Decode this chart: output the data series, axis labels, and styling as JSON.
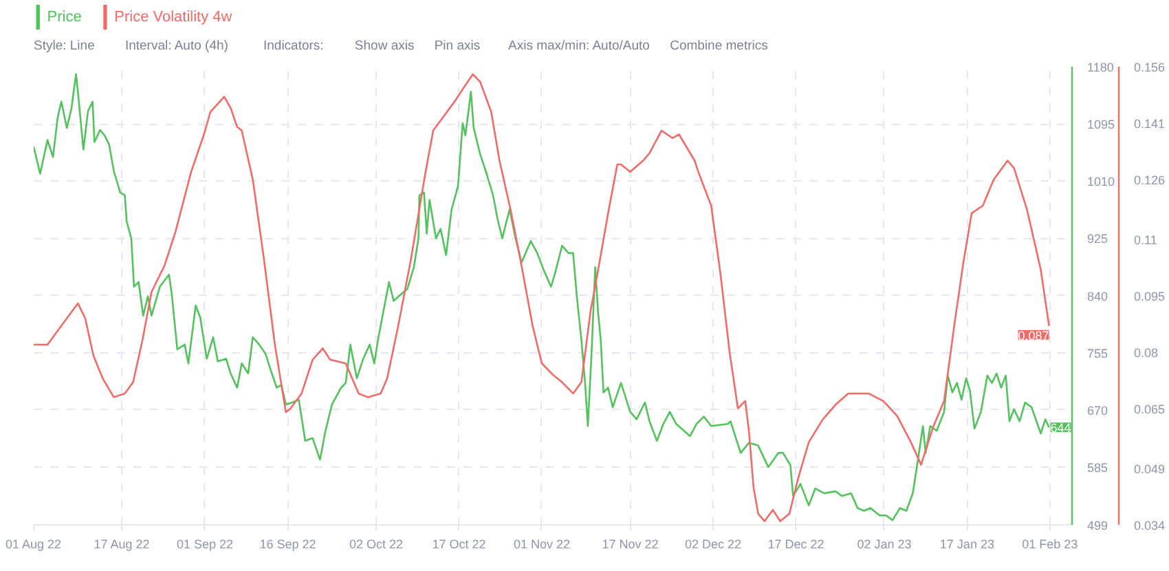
{
  "chart_data": {
    "type": "line",
    "annotations": [
      "Style: Line",
      "Interval: Auto (4h)",
      "Indicators:",
      "Show axis",
      "Pin axis",
      "Axis max/min: Auto/Auto",
      "Combine metrics"
    ],
    "xlim": [
      "2022-08-01",
      "2023-02-05"
    ],
    "xticks": [
      {
        "value": "2022-08-01",
        "label": "01 Aug 22"
      },
      {
        "value": "2022-08-17",
        "label": "17 Aug 22"
      },
      {
        "value": "2022-09-01",
        "label": "01 Sep 22"
      },
      {
        "value": "2022-09-16",
        "label": "16 Sep 22"
      },
      {
        "value": "2022-10-02",
        "label": "02 Oct 22"
      },
      {
        "value": "2022-10-17",
        "label": "17 Oct 22"
      },
      {
        "value": "2022-11-01",
        "label": "01 Nov 22"
      },
      {
        "value": "2022-11-17",
        "label": "17 Nov 22"
      },
      {
        "value": "2022-12-02",
        "label": "02 Dec 22"
      },
      {
        "value": "2022-12-17",
        "label": "17 Dec 22"
      },
      {
        "value": "2023-01-02",
        "label": "02 Jan 23"
      },
      {
        "value": "2023-01-17",
        "label": "17 Jan 23"
      },
      {
        "value": "2023-02-01",
        "label": "01 Feb 23"
      }
    ],
    "ylim": [
      499,
      1180
    ],
    "yticks": [
      499,
      585,
      670,
      755,
      840,
      925,
      1010,
      1095,
      1180
    ],
    "y2lim": [
      0.034,
      0.156
    ],
    "y2ticks": [
      0.034,
      0.049,
      0.065,
      0.08,
      0.095,
      0.11,
      0.126,
      0.141,
      0.156
    ],
    "grid": true,
    "legend": "top left",
    "series": [
      {
        "name": "Price",
        "color": "#52c25c",
        "x": [
          "2022-08-01T00:00",
          "2022-08-02T04:00",
          "2022-08-03T12:00",
          "2022-08-04T12:00",
          "2022-08-05T08:00",
          "2022-08-06T00:00",
          "2022-08-07T00:00",
          "2022-08-07T20:00",
          "2022-08-08T16:00",
          "2022-08-09T00:00",
          "2022-08-10T00:00",
          "2022-08-10T20:00",
          "2022-08-11T16:00",
          "2022-08-12T00:00",
          "2022-08-13T00:00",
          "2022-08-13T20:00",
          "2022-08-14T16:00",
          "2022-08-15T12:00",
          "2022-08-16T16:00",
          "2022-08-17T12:00",
          "2022-08-17T20:00",
          "2022-08-18T16:00",
          "2022-08-19T04:00",
          "2022-08-20T00:00",
          "2022-08-20T20:00",
          "2022-08-21T16:00",
          "2022-08-22T08:00",
          "2022-08-23T20:00",
          "2022-08-25T12:00",
          "2022-08-26T00:00",
          "2022-08-27T00:00",
          "2022-08-28T08:00",
          "2022-08-29T00:00",
          "2022-08-30T08:00",
          "2022-08-31T04:00",
          "2022-09-01T08:00",
          "2022-09-02T12:00",
          "2022-09-03T08:00",
          "2022-09-04T20:00",
          "2022-09-05T16:00",
          "2022-09-06T20:00",
          "2022-09-07T16:00",
          "2022-09-08T20:00",
          "2022-09-09T16:00",
          "2022-09-10T20:00",
          "2022-09-12T00:00",
          "2022-09-12T20:00",
          "2022-09-14T00:00",
          "2022-09-14T20:00",
          "2022-09-15T16:00",
          "2022-09-16T20:00",
          "2022-09-18T00:00",
          "2022-09-19T04:00",
          "2022-09-20T12:00",
          "2022-09-21T20:00",
          "2022-09-22T20:00",
          "2022-09-24T00:00",
          "2022-09-25T16:00",
          "2022-09-26T12:00",
          "2022-09-27T08:00",
          "2022-09-28T12:00",
          "2022-09-29T16:00",
          "2022-09-30T20:00",
          "2022-10-01T16:00",
          "2022-10-02T08:00",
          "2022-10-04T08:00",
          "2022-10-05T04:00",
          "2022-10-07T16:00",
          "2022-10-08T20:00",
          "2022-10-09T16:00",
          "2022-10-09T20:00",
          "2022-10-10T16:00",
          "2022-10-11T04:00",
          "2022-10-11T16:00",
          "2022-10-12T20:00",
          "2022-10-13T16:00",
          "2022-10-14T16:00",
          "2022-10-15T16:00",
          "2022-10-16T20:00",
          "2022-10-17T16:00",
          "2022-10-18T04:00",
          "2022-10-19T04:00",
          "2022-10-19T16:00",
          "2022-10-20T20:00",
          "2022-10-22T00:00",
          "2022-10-23T04:00",
          "2022-10-24T00:00",
          "2022-10-24T20:00",
          "2022-10-26T04:00",
          "2022-10-27T04:00",
          "2022-10-28T08:00",
          "2022-10-30T00:00",
          "2022-10-31T04:00",
          "2022-11-01T08:00",
          "2022-11-02T16:00",
          "2022-11-03T08:00",
          "2022-11-04T16:00",
          "2022-11-05T20:00",
          "2022-11-06T16:00",
          "2022-11-07T08:00",
          "2022-11-08T04:00",
          "2022-11-08T20:00",
          "2022-11-09T08:00",
          "2022-11-10T00:00",
          "2022-11-10T16:00",
          "2022-11-11T04:00",
          "2022-11-11T16:00",
          "2022-11-12T04:00",
          "2022-11-13T00:00",
          "2022-11-13T20:00",
          "2022-11-15T08:00",
          "2022-11-17T00:00",
          "2022-11-18T04:00",
          "2022-11-19T16:00",
          "2022-11-20T12:00",
          "2022-11-21T20:00",
          "2022-11-23T00:00",
          "2022-11-24T04:00",
          "2022-11-25T08:00",
          "2022-11-27T20:00",
          "2022-11-29T00:00",
          "2022-11-30T08:00",
          "2022-12-01T16:00",
          "2022-12-04T16:00",
          "2022-12-05T04:00",
          "2022-12-07T00:00",
          "2022-12-08T12:00",
          "2022-12-10T04:00",
          "2022-12-12T00:00",
          "2022-12-13T20:00",
          "2022-12-14T16:00",
          "2022-12-16T00:00",
          "2022-12-16T12:00",
          "2022-12-17T20:00",
          "2022-12-19T08:00",
          "2022-12-20T12:00",
          "2022-12-22T04:00",
          "2022-12-24T04:00",
          "2022-12-25T08:00",
          "2022-12-27T00:00",
          "2022-12-28T04:00",
          "2022-12-29T08:00",
          "2022-12-30T12:00",
          "2023-01-01T04:00",
          "2023-01-02T08:00",
          "2023-01-03T12:00",
          "2023-01-04T20:00",
          "2023-01-06T00:00",
          "2023-01-07T04:00",
          "2023-01-07T20:00",
          "2023-01-09T00:00",
          "2023-01-09T12:00",
          "2023-01-10T08:00",
          "2023-01-11T12:00",
          "2023-01-12T20:00",
          "2023-01-13T12:00",
          "2023-01-14T08:00",
          "2023-01-15T04:00",
          "2023-01-16T00:00",
          "2023-01-16T20:00",
          "2023-01-17T12:00",
          "2023-01-18T08:00",
          "2023-01-19T12:00",
          "2023-01-20T16:00",
          "2023-01-21T12:00",
          "2023-01-22T08:00",
          "2023-01-23T04:00",
          "2023-01-24T00:00",
          "2023-01-24T16:00",
          "2023-01-25T12:00",
          "2023-01-26T12:00",
          "2023-01-27T12:00",
          "2023-01-28T16:00",
          "2023-01-30T08:00",
          "2023-01-31T04:00",
          "2023-01-31T20:00"
        ],
        "values": [
          1061,
          1021,
          1071,
          1046,
          1104,
          1128,
          1089,
          1118,
          1169,
          1143,
          1057,
          1114,
          1128,
          1068,
          1086,
          1078,
          1064,
          1025,
          993,
          989,
          950,
          925,
          853,
          860,
          810,
          839,
          810,
          853,
          871,
          842,
          760,
          767,
          739,
          825,
          807,
          746,
          778,
          742,
          746,
          724,
          703,
          739,
          724,
          778,
          767,
          753,
          731,
          703,
          707,
          678,
          681,
          685,
          624,
          628,
          596,
          639,
          678,
          703,
          710,
          767,
          717,
          746,
          767,
          739,
          774,
          860,
          832,
          850,
          882,
          925,
          989,
          993,
          932,
          982,
          925,
          939,
          900,
          968,
          1003,
          1096,
          1078,
          1143,
          1089,
          1050,
          1021,
          989,
          953,
          925,
          968,
          928,
          889,
          921,
          903,
          878,
          853,
          871,
          914,
          903,
          903,
          839,
          774,
          710,
          646,
          753,
          882,
          817,
          774,
          696,
          703,
          674,
          710,
          667,
          656,
          681,
          653,
          624,
          649,
          667,
          649,
          631,
          649,
          660,
          646,
          649,
          653,
          606,
          621,
          617,
          585,
          606,
          606,
          588,
          542,
          560,
          528,
          553,
          546,
          549,
          542,
          546,
          524,
          520,
          524,
          513,
          513,
          506,
          524,
          520,
          546,
          581,
          646,
          606,
          646,
          639,
          667,
          721,
          696,
          710,
          685,
          717,
          699,
          642,
          667,
          721,
          710,
          724,
          703,
          721,
          653,
          671,
          653,
          681,
          674,
          635,
          656,
          644
        ],
        "value_labels": [
          null,
          null,
          null,
          null,
          null,
          null,
          null,
          null,
          null,
          null,
          null,
          null,
          null,
          null,
          null,
          null,
          null,
          null,
          null,
          null,
          null,
          null,
          null,
          null,
          null,
          null,
          null,
          null,
          null,
          null,
          null,
          null,
          null,
          null,
          null,
          null,
          null,
          null,
          null,
          null,
          null,
          null,
          null,
          null,
          null,
          null,
          null,
          null,
          null,
          null,
          null,
          null,
          null,
          null,
          null,
          null,
          null,
          null,
          null,
          null,
          null,
          null,
          null,
          null,
          null,
          null,
          null,
          null,
          null,
          null,
          null,
          null,
          null,
          null,
          null,
          null,
          null,
          null,
          null,
          null,
          null,
          null,
          null,
          null,
          null,
          null,
          null,
          null,
          null,
          null,
          null,
          null,
          null,
          null,
          null,
          null,
          null,
          null,
          null,
          null,
          null,
          null,
          null,
          null,
          null,
          null,
          null,
          null,
          null,
          null,
          null,
          null,
          null,
          null,
          null,
          null,
          null,
          null,
          null,
          null,
          null,
          null,
          null,
          null,
          null,
          null,
          null,
          null,
          null,
          null,
          null,
          null,
          null,
          null,
          null,
          null,
          null,
          null,
          null,
          null,
          null,
          null,
          null,
          null,
          null,
          null,
          null,
          null,
          null,
          null,
          null,
          null,
          null,
          null,
          null,
          null,
          null,
          null,
          null,
          null,
          null,
          null,
          null,
          null,
          null,
          null,
          null,
          null,
          null,
          null,
          null,
          null,
          null,
          null,
          null,
          "644"
        ]
      },
      {
        "name": "Price Volatility 4w",
        "color": "#f06a68",
        "axis": "y2",
        "x": [
          "2022-08-01T00:00",
          "2022-08-03T12:00",
          "2022-08-05T00:00",
          "2022-08-07T00:00",
          "2022-08-09T00:00",
          "2022-08-10T08:00",
          "2022-08-11T20:00",
          "2022-08-13T12:00",
          "2022-08-15T12:00",
          "2022-08-17T12:00",
          "2022-08-19T00:00",
          "2022-08-20T16:00",
          "2022-08-22T08:00",
          "2022-08-24T16:00",
          "2022-08-26T16:00",
          "2022-08-29T12:00",
          "2022-08-31T20:00",
          "2022-09-02T00:00",
          "2022-09-04T12:00",
          "2022-09-05T16:00",
          "2022-09-06T20:00",
          "2022-09-07T16:00",
          "2022-09-09T16:00",
          "2022-09-11T16:00",
          "2022-09-13T16:00",
          "2022-09-15T16:00",
          "2022-09-16T12:00",
          "2022-09-18T12:00",
          "2022-09-20T12:00",
          "2022-09-22T08:00",
          "2022-09-23T16:00",
          "2022-09-26T12:00",
          "2022-09-28T20:00",
          "2022-09-30T12:00",
          "2022-10-02T20:00",
          "2022-10-04T00:00",
          "2022-10-06T00:00",
          "2022-10-08T08:00",
          "2022-10-10T20:00",
          "2022-10-12T08:00",
          "2022-10-14T08:00",
          "2022-10-16T08:00",
          "2022-10-17T16:00",
          "2022-10-19T12:00",
          "2022-10-20T20:00",
          "2022-10-22T20:00",
          "2022-10-24T08:00",
          "2022-10-26T08:00",
          "2022-10-28T08:00",
          "2022-10-30T08:00",
          "2022-11-01T00:00",
          "2022-11-03T00:00",
          "2022-11-04T16:00",
          "2022-11-06T16:00",
          "2022-11-08T04:00",
          "2022-11-09T20:00",
          "2022-11-11T08:00",
          "2022-11-13T00:00",
          "2022-11-14T16:00",
          "2022-11-15T08:00",
          "2022-11-17T00:00",
          "2022-11-19T08:00",
          "2022-11-20T12:00",
          "2022-11-22T16:00",
          "2022-11-24T16:00",
          "2022-11-25T20:00",
          "2022-11-28T16:00",
          "2022-11-29T08:00",
          "2022-12-01T16:00",
          "2022-12-03T08:00",
          "2022-12-05T00:00",
          "2022-12-06T12:00",
          "2022-12-07T20:00",
          "2022-12-08T12:00",
          "2022-12-09T08:00",
          "2022-12-10T04:00",
          "2022-12-11T08:00",
          "2022-12-12T20:00",
          "2022-12-14T04:00",
          "2022-12-15T20:00",
          "2022-12-17T08:00",
          "2022-12-19T08:00",
          "2022-12-21T20:00",
          "2022-12-24T04:00",
          "2022-12-26T12:00",
          "2022-12-30T04:00",
          "2023-01-01T20:00",
          "2023-01-04T08:00",
          "2023-01-06T20:00",
          "2023-01-08T16:00",
          "2023-01-10T20:00",
          "2023-01-12T20:00",
          "2023-01-14T16:00",
          "2023-01-16T08:00",
          "2023-01-17T20:00",
          "2023-01-19T20:00",
          "2023-01-21T20:00",
          "2023-01-24T08:00",
          "2023-01-25T12:00",
          "2023-01-27T20:00",
          "2023-01-30T08:00",
          "2023-01-31T20:00"
        ],
        "values": [
          0.082,
          0.082,
          0.085,
          0.089,
          0.093,
          0.089,
          0.079,
          0.073,
          0.068,
          0.069,
          0.072,
          0.083,
          0.096,
          0.103,
          0.112,
          0.128,
          0.138,
          0.144,
          0.148,
          0.145,
          0.14,
          0.139,
          0.126,
          0.105,
          0.082,
          0.064,
          0.065,
          0.069,
          0.078,
          0.081,
          0.078,
          0.077,
          0.069,
          0.068,
          0.069,
          0.073,
          0.087,
          0.105,
          0.127,
          0.139,
          0.143,
          0.147,
          0.15,
          0.154,
          0.152,
          0.144,
          0.131,
          0.118,
          0.103,
          0.087,
          0.077,
          0.074,
          0.072,
          0.069,
          0.072,
          0.091,
          0.103,
          0.117,
          0.13,
          0.13,
          0.128,
          0.131,
          0.133,
          0.139,
          0.137,
          0.138,
          0.131,
          0.128,
          0.119,
          0.101,
          0.08,
          0.065,
          0.067,
          0.059,
          0.044,
          0.037,
          0.035,
          0.038,
          0.035,
          0.037,
          0.046,
          0.056,
          0.062,
          0.066,
          0.069,
          0.069,
          0.067,
          0.063,
          0.056,
          0.05,
          0.06,
          0.067,
          0.087,
          0.104,
          0.117,
          0.119,
          0.126,
          0.131,
          0.129,
          0.118,
          0.102,
          0.087
        ],
        "value_labels": [
          null,
          null,
          null,
          null,
          null,
          null,
          null,
          null,
          null,
          null,
          null,
          null,
          null,
          null,
          null,
          null,
          null,
          null,
          null,
          null,
          null,
          null,
          null,
          null,
          null,
          null,
          null,
          null,
          null,
          null,
          null,
          null,
          null,
          null,
          null,
          null,
          null,
          null,
          null,
          null,
          null,
          null,
          null,
          null,
          null,
          null,
          null,
          null,
          null,
          null,
          null,
          null,
          null,
          null,
          null,
          null,
          null,
          null,
          null,
          null,
          null,
          null,
          null,
          null,
          null,
          null,
          null,
          null,
          null,
          null,
          null,
          null,
          null,
          null,
          null,
          null,
          null,
          null,
          null,
          null,
          null,
          null,
          null,
          null,
          null,
          null,
          null,
          null,
          null,
          null,
          null,
          null,
          null,
          null,
          null,
          null,
          null,
          null,
          null,
          null,
          null,
          "0.087"
        ]
      }
    ]
  }
}
